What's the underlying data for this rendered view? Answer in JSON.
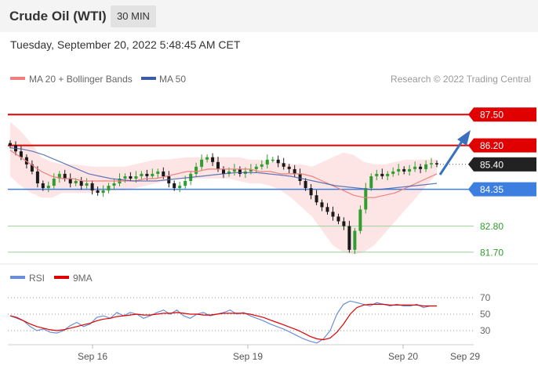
{
  "header": {
    "title": "Crude Oil (WTI)",
    "timeframe": "30 MIN"
  },
  "date_line": "Tuesday, September 20, 2022 5:48:45 AM CET",
  "colors": {
    "bollinger": "#f08080",
    "ma50": "#3b5ba5",
    "rsi": "#6a8fd8",
    "ma9": "#e00000",
    "resistance": "#e00000",
    "support_blue": "#3d7fe0",
    "support_green": "#2e9e2e",
    "candle_up": "#2e9e2e",
    "candle_down": "#1a1a1a"
  },
  "chart_data": [
    {
      "type": "candlestick",
      "title": "Crude Oil (WTI)",
      "legend": {
        "ma20_bb": "MA 20 + Bollinger Bands",
        "ma50": "MA 50",
        "position": "top-left"
      },
      "credit": "Research © 2022 Trading Central",
      "x_ticks": [
        "Sep 16",
        "Sep 19",
        "Sep 20",
        "Sep 29"
      ],
      "ylim": [
        81.3,
        88.2
      ],
      "levels": [
        {
          "label": "87.50",
          "value": 87.5,
          "kind": "resistance"
        },
        {
          "label": "86.20",
          "value": 86.2,
          "kind": "resistance"
        },
        {
          "label": "85.40",
          "value": 85.4,
          "kind": "last"
        },
        {
          "label": "84.35",
          "value": 84.35,
          "kind": "pivot"
        },
        {
          "label": "82.80",
          "value": 82.8,
          "kind": "support"
        },
        {
          "label": "81.70",
          "value": 81.7,
          "kind": "support"
        }
      ],
      "close": [
        86.2,
        85.95,
        85.7,
        85.4,
        85.1,
        84.6,
        84.4,
        84.5,
        84.8,
        85.0,
        84.8,
        84.6,
        84.7,
        84.5,
        84.6,
        84.3,
        84.2,
        84.3,
        84.5,
        84.6,
        84.8,
        84.9,
        84.8,
        84.9,
        85.0,
        84.9,
        85.0,
        85.1,
        84.9,
        84.6,
        84.4,
        84.5,
        84.7,
        85.0,
        85.3,
        85.6,
        85.7,
        85.5,
        85.2,
        85.0,
        85.1,
        85.2,
        85.0,
        85.1,
        85.2,
        85.3,
        85.4,
        85.6,
        85.6,
        85.45,
        85.3,
        85.2,
        85.0,
        84.7,
        84.4,
        84.1,
        83.8,
        83.6,
        83.4,
        83.2,
        83.0,
        82.8,
        81.8,
        82.6,
        83.5,
        84.4,
        84.9,
        85.0,
        84.9,
        85.0,
        85.1,
        85.2,
        85.1,
        85.2,
        85.3,
        85.2,
        85.4,
        85.45,
        85.4
      ],
      "ma20": [
        86.0,
        85.7,
        85.4,
        85.1,
        84.9,
        84.8,
        84.8,
        84.7,
        84.7,
        84.7,
        84.7,
        84.7,
        84.7,
        84.8,
        84.8,
        84.9,
        85.0,
        85.1,
        85.1,
        85.2,
        85.2,
        85.2,
        85.2,
        85.2,
        85.1,
        85.1,
        85.0,
        85.0,
        85.0,
        84.9,
        84.7,
        84.5,
        84.3,
        84.1,
        84.0,
        84.0,
        84.1,
        84.2,
        84.4,
        84.6,
        84.8,
        85.0
      ],
      "bb_upper": [
        87.2,
        86.8,
        86.3,
        85.7,
        85.5,
        85.4,
        85.4,
        85.35,
        85.3,
        85.3,
        85.3,
        85.3,
        85.4,
        85.5,
        85.6,
        85.6,
        85.65,
        85.7,
        85.7,
        85.7,
        85.7,
        85.7,
        85.7,
        85.6,
        85.6,
        85.5,
        85.5,
        85.4,
        85.4,
        85.3,
        85.5,
        85.7,
        85.9,
        85.8,
        85.5,
        85.4,
        85.4,
        85.5,
        85.6,
        85.6,
        85.6,
        85.6
      ],
      "bb_lower": [
        84.9,
        84.5,
        84.2,
        84.0,
        84.0,
        84.2,
        84.2,
        84.2,
        84.2,
        84.3,
        84.3,
        84.3,
        84.4,
        84.5,
        84.6,
        84.7,
        84.8,
        84.8,
        84.8,
        84.8,
        84.8,
        84.8,
        84.7,
        84.6,
        84.6,
        84.5,
        84.3,
        84.0,
        83.6,
        83.2,
        82.6,
        82.0,
        81.7,
        81.6,
        81.7,
        82.0,
        82.5,
        83.0,
        83.5,
        84.0,
        84.5,
        85.0
      ],
      "ma50": [
        86.1,
        86.05,
        85.95,
        85.8,
        85.6,
        85.4,
        85.2,
        85.0,
        84.9,
        84.8,
        84.75,
        84.7,
        84.7,
        84.7,
        84.75,
        84.8,
        84.85,
        84.9,
        84.95,
        85.0,
        85.05,
        85.05,
        85.05,
        85.0,
        84.95,
        84.9,
        84.8,
        84.7,
        84.6,
        84.5,
        84.45,
        84.4,
        84.35,
        84.35,
        84.4,
        84.45,
        84.5,
        84.55,
        84.6
      ]
    },
    {
      "type": "line",
      "legend": {
        "rsi": "RSI",
        "ma9": "9MA",
        "position": "top-left"
      },
      "y_ticks": [
        "70",
        "50",
        "30"
      ],
      "ylim": [
        15,
        80
      ],
      "rsi": [
        48,
        45,
        42,
        35,
        30,
        32,
        28,
        27,
        30,
        36,
        40,
        35,
        38,
        46,
        48,
        45,
        52,
        48,
        52,
        50,
        45,
        48,
        52,
        55,
        50,
        55,
        48,
        45,
        50,
        52,
        48,
        50,
        52,
        55,
        50,
        52,
        48,
        45,
        42,
        38,
        35,
        32,
        28,
        24,
        20,
        17,
        15,
        20,
        30,
        50,
        62,
        66,
        64,
        62,
        60,
        64,
        62,
        60,
        62,
        60,
        60,
        62,
        58,
        60,
        60
      ],
      "ma9": [
        48,
        46,
        42,
        38,
        35,
        33,
        31,
        30,
        31,
        33,
        35,
        37,
        39,
        42,
        44,
        45,
        47,
        48,
        49,
        50,
        49,
        49,
        50,
        51,
        51,
        52,
        51,
        50,
        50,
        49,
        49,
        50,
        51,
        51,
        51,
        51,
        50,
        48,
        46,
        43,
        40,
        37,
        34,
        31,
        27,
        23,
        20,
        19,
        21,
        28,
        38,
        50,
        58,
        61,
        62,
        62,
        62,
        61,
        61,
        61,
        61,
        61,
        60,
        60,
        60
      ]
    }
  ]
}
